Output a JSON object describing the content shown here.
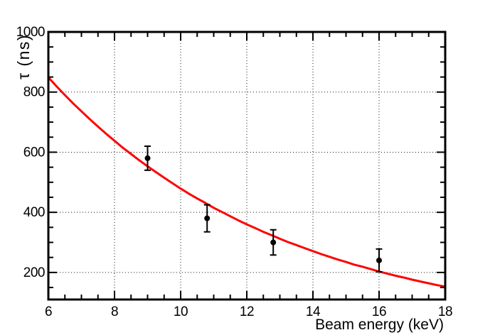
{
  "window": {
    "background": "#ffffff"
  },
  "colors": {
    "frame": "#000000",
    "grid": "#000000",
    "curve": "#ff0000",
    "marker": "#000000"
  },
  "chart_data": {
    "type": "scatter",
    "title": "",
    "xlabel": "Beam energy (keV)",
    "ylabel": "τ (ns)",
    "xlim": [
      6,
      18
    ],
    "ylim": [
      110,
      1000
    ],
    "grid": true,
    "grid_style": "dotted",
    "legend": "none",
    "x_major_ticks": [
      6,
      8,
      10,
      12,
      14,
      16,
      18
    ],
    "x_minor_step": 0.5,
    "y_major_ticks": [
      200,
      400,
      600,
      800,
      1000
    ],
    "y_minor_step": 50,
    "points": {
      "name": "measured-lifetime-points",
      "marker": "filled-circle",
      "x": [
        9.0,
        10.8,
        12.8,
        16.0
      ],
      "y": [
        580,
        380,
        300,
        240
      ],
      "yerr": [
        40,
        45,
        42,
        38
      ]
    },
    "fit": {
      "name": "exponential-fit-curve",
      "model": "tau = A * exp(-E / E0)",
      "A_ns": 2000,
      "E0_keV": 7,
      "x_start": 6,
      "x_step": 0.25,
      "y": [
        849,
        819,
        790,
        762,
        736,
        710,
        685,
        661,
        638,
        615,
        594,
        573,
        553,
        534,
        515,
        497,
        479,
        462,
        446,
        431,
        415,
        401,
        387,
        373,
        360,
        348,
        335,
        324,
        312,
        301,
        291,
        281,
        271,
        261,
        252,
        243,
        235,
        226,
        219,
        211,
        203,
        196,
        189,
        183,
        176,
        170,
        164,
        158,
        153
      ]
    }
  }
}
